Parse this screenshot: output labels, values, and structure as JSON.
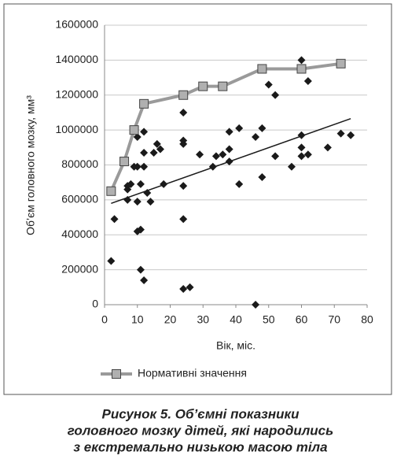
{
  "chart_data": {
    "type": "scatter",
    "ylabel": "Об’єм головного мозку, мм³",
    "xlabel": "Вік, міс.",
    "caption": [
      "Рисунок 5. Об’ємні показники",
      "головного мозку дітей, які народились",
      "з екстремально низькою масою тіла"
    ],
    "xlim": [
      0,
      80
    ],
    "xticks": [
      0,
      10,
      20,
      30,
      40,
      50,
      60,
      70,
      80
    ],
    "ylim": [
      0,
      1600000
    ],
    "yticks": [
      0,
      200000,
      400000,
      600000,
      800000,
      1000000,
      1200000,
      1400000,
      1600000
    ],
    "grid": true,
    "legend": "bottom",
    "series": [
      {
        "name": "Нормативні значення",
        "color": "#9a9a9a",
        "x": [
          2,
          6,
          9,
          12,
          24,
          30,
          36,
          48,
          60,
          72
        ],
        "values": [
          650000,
          820000,
          1000000,
          1150000,
          1200000,
          1250000,
          1250000,
          1350000,
          1350000,
          1380000
        ]
      }
    ],
    "points": {
      "color": "#1a1a1a",
      "x": [
        2,
        3,
        7,
        7,
        7,
        8,
        9,
        10,
        10,
        10,
        10,
        11,
        11,
        11,
        12,
        12,
        12,
        12,
        13,
        14,
        15,
        16,
        17,
        18,
        24,
        24,
        24,
        24,
        24,
        24,
        26,
        29,
        33,
        34,
        36,
        38,
        38,
        38,
        41,
        41,
        46,
        46,
        48,
        48,
        50,
        52,
        52,
        57,
        60,
        60,
        60,
        60,
        62,
        62,
        68,
        72,
        75
      ],
      "values": [
        250000,
        490000,
        600000,
        660000,
        680000,
        690000,
        790000,
        790000,
        960000,
        590000,
        420000,
        430000,
        200000,
        690000,
        140000,
        790000,
        870000,
        990000,
        640000,
        590000,
        870000,
        920000,
        890000,
        690000,
        1100000,
        940000,
        920000,
        680000,
        490000,
        90000,
        100000,
        860000,
        790000,
        850000,
        860000,
        990000,
        890000,
        820000,
        1010000,
        690000,
        0,
        960000,
        1010000,
        730000,
        1260000,
        1200000,
        850000,
        790000,
        1400000,
        970000,
        900000,
        850000,
        1280000,
        860000,
        900000,
        980000,
        970000
      ]
    },
    "trend": {
      "color": "#1a1a1a",
      "x": [
        2,
        75
      ],
      "values": [
        580000,
        1065000
      ]
    }
  }
}
